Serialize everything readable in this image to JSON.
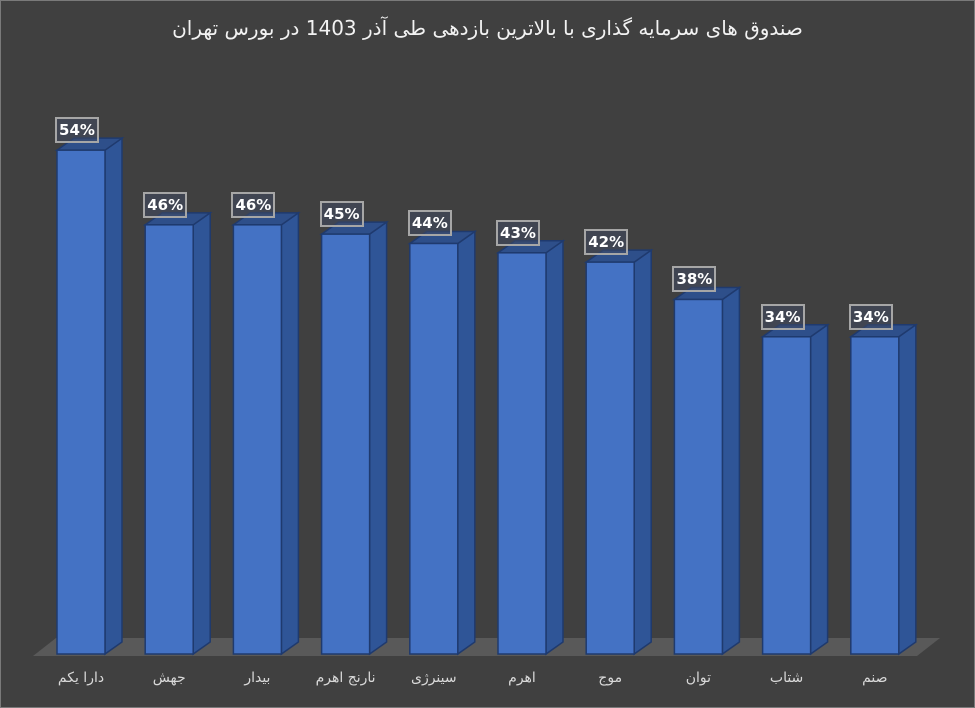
{
  "chart_data": {
    "type": "bar",
    "title": "صندوق های سرمایه گذاری با بالاترین بازدهی طی آذر 1403 در بورس تهران",
    "xlabel": "",
    "ylabel": "",
    "categories": [
      "دارا یکم",
      "جهش",
      "بیدار",
      "نارنج اهرم",
      "سینرژی",
      "اهرم",
      "موج",
      "توان",
      "شتاب",
      "صنم"
    ],
    "values": [
      54,
      46,
      46,
      45,
      44,
      43,
      42,
      38,
      34,
      34
    ],
    "value_labels": [
      "54%",
      "46%",
      "46%",
      "45%",
      "44%",
      "43%",
      "42%",
      "38%",
      "34%",
      "34%"
    ],
    "unit": "%",
    "style": "3d-column",
    "grid": false,
    "legend": false,
    "colors": {
      "bar_front": "#4472c4",
      "bar_side": "#2f5597",
      "background": "#404040",
      "floor": "#595959",
      "text": "#d9d9d9"
    }
  }
}
